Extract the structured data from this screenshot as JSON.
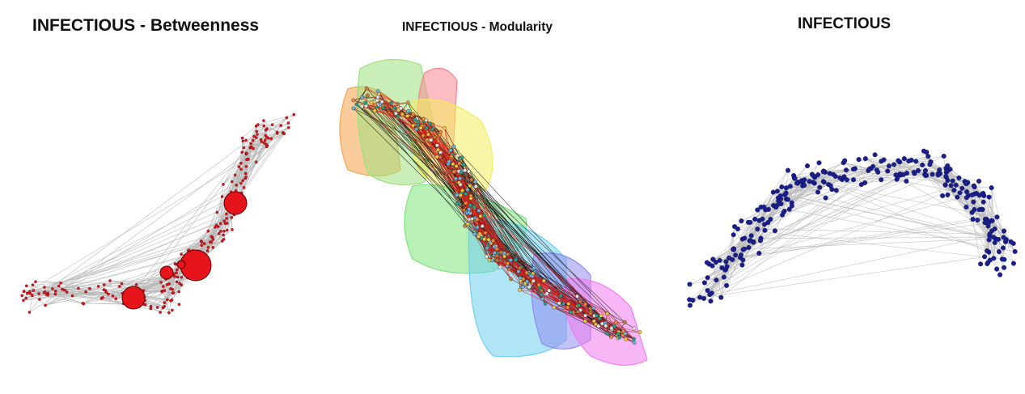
{
  "panels": {
    "betweenness": {
      "title": "INFECTIOUS - Betweenness"
    },
    "modularity": {
      "title": "INFECTIOUS - Modularity"
    },
    "plain": {
      "title": "INFECTIOUS"
    }
  },
  "colors": {
    "edge": "#b9b9b9",
    "betweenness_node": "#e8141b",
    "betweenness_node_stroke": "#5a0000",
    "plain_node": "#1a1f8c",
    "modularity_edge_internal": "#1a1a1a",
    "modularity_edge_cross": "#e3211b",
    "community_hulls": [
      "#f6a24a",
      "#9ee07e",
      "#f7868f",
      "#f4ec5d",
      "#7fe37e",
      "#6fd0ef",
      "#8f8cf0",
      "#f07bf0"
    ]
  }
}
